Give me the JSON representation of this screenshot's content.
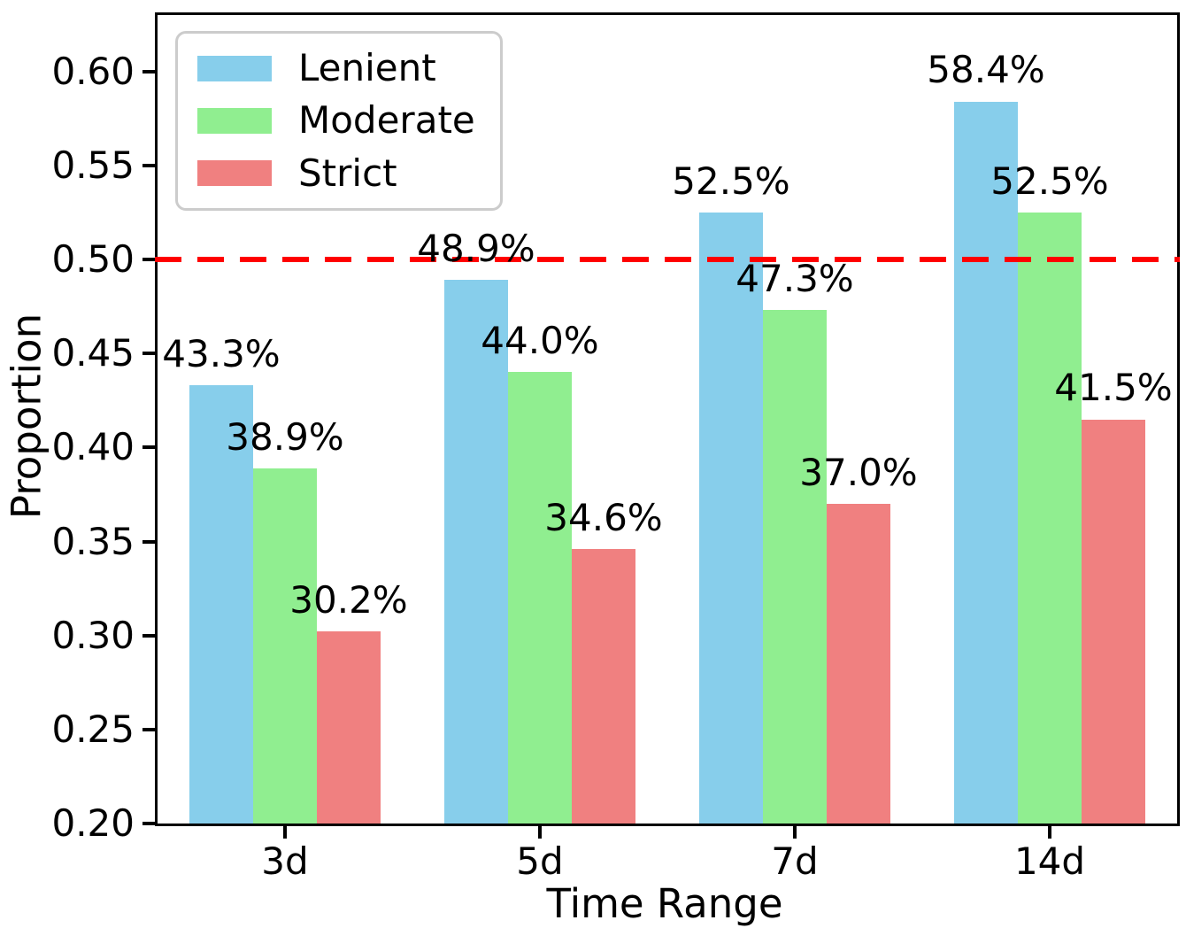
{
  "chart_data": {
    "type": "bar",
    "categories": [
      "3d",
      "5d",
      "7d",
      "14d"
    ],
    "series": [
      {
        "name": "Lenient",
        "color": "#87CEEB",
        "values": [
          0.433,
          0.489,
          0.525,
          0.584
        ],
        "labels": [
          "43.3%",
          "48.9%",
          "52.5%",
          "58.4%"
        ]
      },
      {
        "name": "Moderate",
        "color": "#90EE90",
        "values": [
          0.389,
          0.44,
          0.473,
          0.525
        ],
        "labels": [
          "38.9%",
          "44.0%",
          "47.3%",
          "52.5%"
        ]
      },
      {
        "name": "Strict",
        "color": "#F08080",
        "values": [
          0.302,
          0.346,
          0.37,
          0.415
        ],
        "labels": [
          "30.2%",
          "34.6%",
          "37.0%",
          "41.5%"
        ]
      }
    ],
    "title": "",
    "xlabel": "Time Range",
    "ylabel": "Proportion",
    "ylim": [
      0.2,
      0.63
    ],
    "yticks": [
      0.2,
      0.25,
      0.3,
      0.35,
      0.4,
      0.45,
      0.5,
      0.55,
      0.6
    ],
    "ytick_labels": [
      "0.20",
      "0.25",
      "0.30",
      "0.35",
      "0.40",
      "0.45",
      "0.50",
      "0.55",
      "0.60"
    ],
    "grid": false,
    "legend_position": "upper-left",
    "bar_group_width_units": 0.25,
    "reference_line": {
      "y": 0.5,
      "color": "#FF0000",
      "style": "dashed"
    },
    "axis_color": "#000000",
    "background_color": "#FFFFFF"
  }
}
